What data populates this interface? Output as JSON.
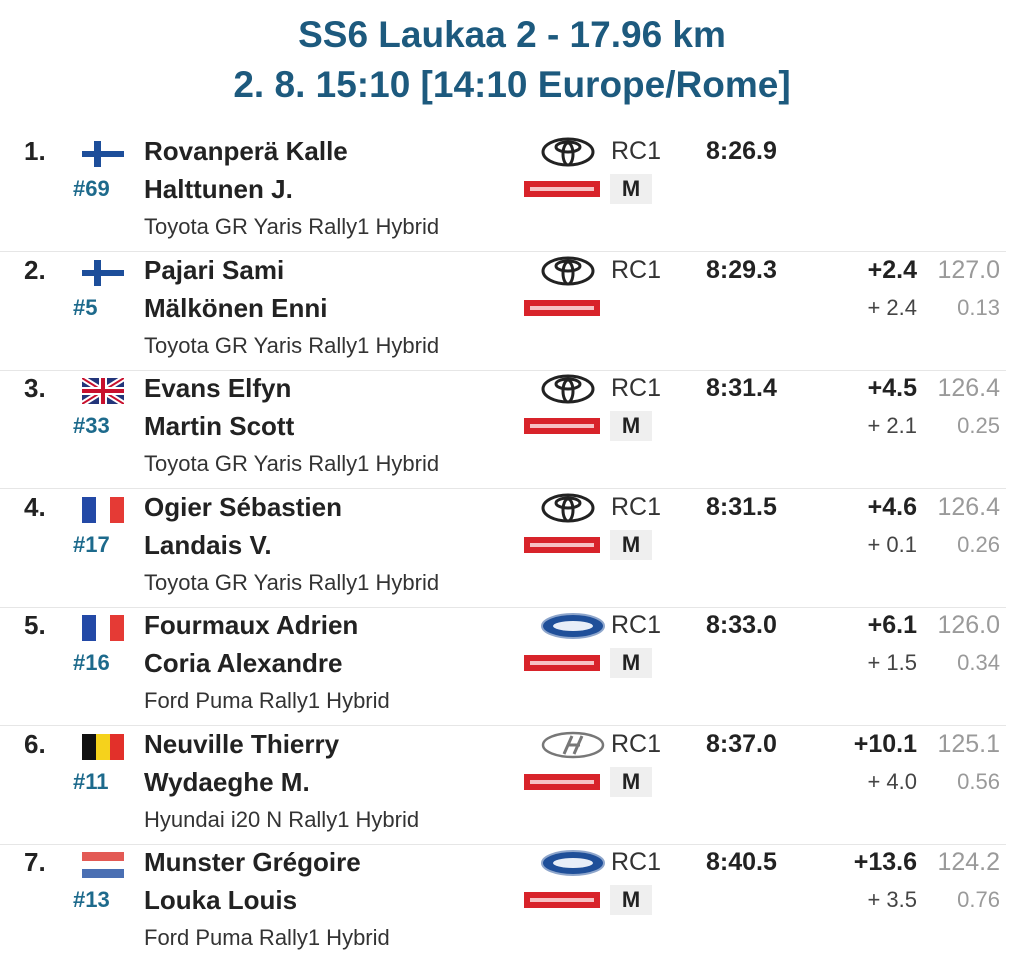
{
  "header": {
    "title": "SS6 Laukaa 2 - 17.96 km",
    "subtitle": "2. 8. 15:10 [14:10 Europe/Rome]"
  },
  "table": {
    "rows": [
      {
        "pos": "1.",
        "number": "#69",
        "driver": "Rovanperä Kalle",
        "codriver": "Halttunen J.",
        "car": "Toyota GR Yaris Rally1 Hybrid",
        "class": "RC1",
        "tyre": "M",
        "time": "8:26.9"
      },
      {
        "pos": "2.",
        "number": "#5",
        "driver": "Pajari Sami",
        "codriver": "Mälkönen Enni",
        "car": "Toyota GR Yaris Rally1 Hybrid",
        "class": "RC1",
        "time": "8:29.3",
        "gap": "+2.4",
        "speed": "127.0",
        "diff": "+ 2.4",
        "per_km": "0.13"
      },
      {
        "pos": "3.",
        "number": "#33",
        "driver": "Evans Elfyn",
        "codriver": "Martin Scott",
        "car": "Toyota GR Yaris Rally1 Hybrid",
        "class": "RC1",
        "tyre": "M",
        "time": "8:31.4",
        "gap": "+4.5",
        "speed": "126.4",
        "diff": "+ 2.1",
        "per_km": "0.25"
      },
      {
        "pos": "4.",
        "number": "#17",
        "driver": "Ogier Sébastien",
        "codriver": "Landais V.",
        "car": "Toyota GR Yaris Rally1 Hybrid",
        "class": "RC1",
        "tyre": "M",
        "time": "8:31.5",
        "gap": "+4.6",
        "speed": "126.4",
        "diff": "+ 0.1",
        "per_km": "0.26"
      },
      {
        "pos": "5.",
        "number": "#16",
        "driver": "Fourmaux Adrien",
        "codriver": "Coria Alexandre",
        "car": "Ford Puma Rally1 Hybrid",
        "class": "RC1",
        "tyre": "M",
        "time": "8:33.0",
        "gap": "+6.1",
        "speed": "126.0",
        "diff": "+ 1.5",
        "per_km": "0.34"
      },
      {
        "pos": "6.",
        "number": "#11",
        "driver": "Neuville Thierry",
        "codriver": "Wydaeghe M.",
        "car": "Hyundai i20 N Rally1 Hybrid",
        "class": "RC1",
        "tyre": "M",
        "time": "8:37.0",
        "gap": "+10.1",
        "speed": "125.1",
        "diff": "+ 4.0",
        "per_km": "0.56"
      },
      {
        "pos": "7.",
        "number": "#13",
        "driver": "Munster Grégoire",
        "codriver": "Louka Louis",
        "car": "Ford Puma Rally1 Hybrid",
        "class": "RC1",
        "tyre": "M",
        "time": "8:40.5",
        "gap": "+13.6",
        "speed": "124.2",
        "diff": "+ 3.5",
        "per_km": "0.76"
      }
    ]
  }
}
